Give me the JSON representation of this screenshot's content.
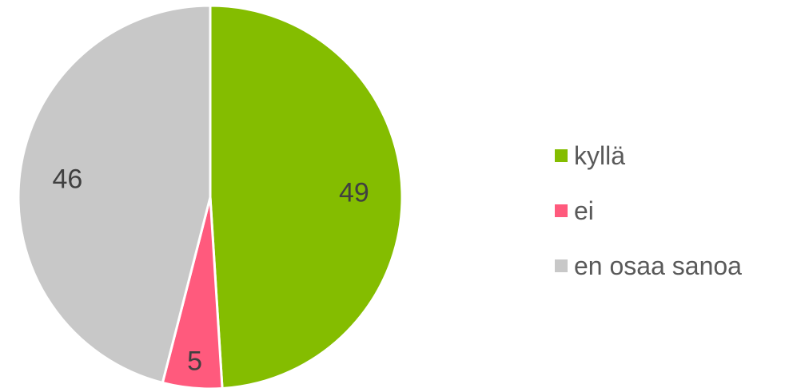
{
  "chart_data": {
    "type": "pie",
    "title": "",
    "legend_position": "right",
    "slices": [
      {
        "label": "kyllä",
        "value": 49,
        "color": "#84BD00"
      },
      {
        "label": "ei",
        "value": 5,
        "color": "#FF5A7D"
      },
      {
        "label": "en osaa sanoa",
        "value": 46,
        "color": "#C8C8C8"
      }
    ]
  }
}
